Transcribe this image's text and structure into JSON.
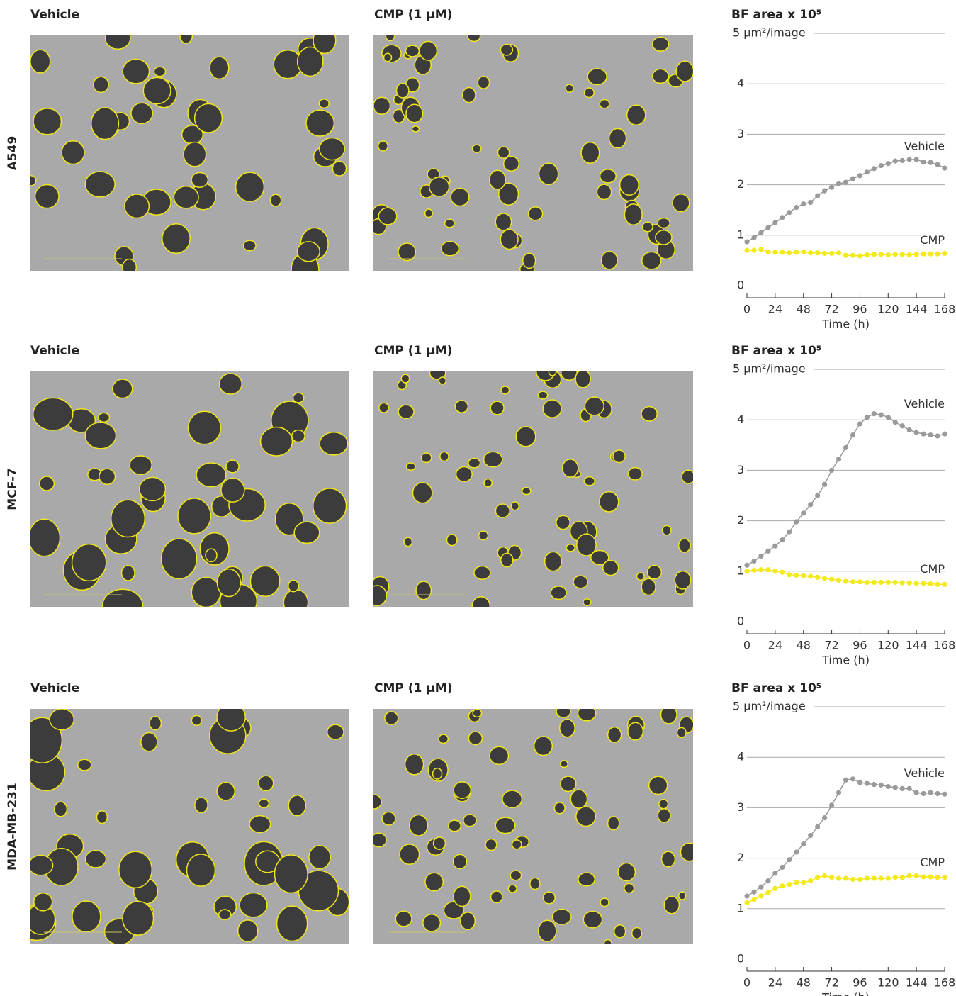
{
  "rows": [
    {
      "label": "A549",
      "image_titles": [
        "Vehicle",
        "CMP (1 μM)"
      ]
    },
    {
      "label": "MCF-7",
      "image_titles": [
        "Vehicle",
        "CMP (1 μM)"
      ]
    },
    {
      "label": "MDA-MB-231",
      "image_titles": [
        "Vehicle",
        "CMP (1 μM)"
      ]
    }
  ],
  "chart_data": [
    {
      "type": "line",
      "title": "BF area x 10⁵",
      "xlabel": "Time (h)",
      "x": [
        0,
        6,
        12,
        18,
        24,
        30,
        36,
        42,
        48,
        54,
        60,
        66,
        72,
        78,
        84,
        90,
        96,
        102,
        108,
        114,
        120,
        126,
        132,
        138,
        144,
        150,
        156,
        162,
        168
      ],
      "series": [
        {
          "name": "Vehicle",
          "color": "#9a9a9a",
          "values": [
            0.87,
            0.95,
            1.05,
            1.15,
            1.25,
            1.35,
            1.45,
            1.55,
            1.62,
            1.65,
            1.78,
            1.88,
            1.95,
            2.02,
            2.05,
            2.12,
            2.18,
            2.25,
            2.32,
            2.38,
            2.42,
            2.47,
            2.48,
            2.5,
            2.5,
            2.45,
            2.44,
            2.4,
            2.33
          ]
        },
        {
          "name": "CMP",
          "color": "#f2ea1c",
          "values": [
            0.7,
            0.7,
            0.72,
            0.67,
            0.66,
            0.66,
            0.65,
            0.66,
            0.67,
            0.65,
            0.65,
            0.64,
            0.64,
            0.65,
            0.6,
            0.6,
            0.59,
            0.61,
            0.62,
            0.62,
            0.61,
            0.62,
            0.62,
            0.61,
            0.62,
            0.63,
            0.63,
            0.63,
            0.64
          ]
        }
      ],
      "xlim": [
        0,
        168
      ],
      "xticks": [
        0,
        24,
        48,
        72,
        96,
        120,
        144,
        168
      ],
      "ylim": [
        0,
        5
      ],
      "yticks": [
        0,
        1,
        2,
        3,
        4,
        {
          "value": 5,
          "label": "5 μm²/image"
        }
      ],
      "grid": true
    },
    {
      "type": "line",
      "title": "BF area x 10⁵",
      "xlabel": "Time (h)",
      "x": [
        0,
        6,
        12,
        18,
        24,
        30,
        36,
        42,
        48,
        54,
        60,
        66,
        72,
        78,
        84,
        90,
        96,
        102,
        108,
        114,
        120,
        126,
        132,
        138,
        144,
        150,
        156,
        162,
        168
      ],
      "series": [
        {
          "name": "Vehicle",
          "color": "#9a9a9a",
          "values": [
            1.12,
            1.2,
            1.3,
            1.4,
            1.5,
            1.62,
            1.78,
            1.98,
            2.15,
            2.32,
            2.5,
            2.72,
            3.0,
            3.22,
            3.45,
            3.7,
            3.92,
            4.05,
            4.12,
            4.1,
            4.05,
            3.95,
            3.88,
            3.8,
            3.75,
            3.72,
            3.7,
            3.68,
            3.72
          ]
        },
        {
          "name": "CMP",
          "color": "#f2ea1c",
          "values": [
            1.0,
            1.02,
            1.03,
            1.03,
            1.0,
            0.98,
            0.93,
            0.92,
            0.91,
            0.9,
            0.88,
            0.86,
            0.84,
            0.82,
            0.8,
            0.79,
            0.79,
            0.78,
            0.78,
            0.78,
            0.78,
            0.78,
            0.77,
            0.77,
            0.76,
            0.76,
            0.75,
            0.74,
            0.74
          ]
        }
      ],
      "xlim": [
        0,
        168
      ],
      "xticks": [
        0,
        24,
        48,
        72,
        96,
        120,
        144,
        168
      ],
      "ylim": [
        0,
        5
      ],
      "yticks": [
        0,
        1,
        2,
        3,
        4,
        {
          "value": 5,
          "label": "5 μm²/image"
        }
      ],
      "grid": true
    },
    {
      "type": "line",
      "title": "BF area x 10⁵",
      "xlabel": "Time (h)",
      "x": [
        0,
        6,
        12,
        18,
        24,
        30,
        36,
        42,
        48,
        54,
        60,
        66,
        72,
        78,
        84,
        90,
        96,
        102,
        108,
        114,
        120,
        126,
        132,
        138,
        144,
        150,
        156,
        162,
        168
      ],
      "series": [
        {
          "name": "Vehicle",
          "color": "#9a9a9a",
          "values": [
            1.25,
            1.33,
            1.43,
            1.55,
            1.7,
            1.82,
            1.97,
            2.12,
            2.28,
            2.45,
            2.62,
            2.8,
            3.05,
            3.3,
            3.55,
            3.57,
            3.5,
            3.48,
            3.46,
            3.45,
            3.42,
            3.4,
            3.38,
            3.38,
            3.3,
            3.28,
            3.3,
            3.28,
            3.27
          ]
        },
        {
          "name": "CMP",
          "color": "#f2ea1c",
          "values": [
            1.12,
            1.18,
            1.25,
            1.32,
            1.4,
            1.45,
            1.48,
            1.52,
            1.52,
            1.55,
            1.62,
            1.65,
            1.62,
            1.6,
            1.6,
            1.58,
            1.58,
            1.6,
            1.6,
            1.6,
            1.6,
            1.62,
            1.62,
            1.65,
            1.65,
            1.63,
            1.63,
            1.62,
            1.62
          ]
        }
      ],
      "xlim": [
        0,
        168
      ],
      "xticks": [
        0,
        24,
        48,
        72,
        96,
        120,
        144,
        168
      ],
      "ylim": [
        0,
        5
      ],
      "yticks": [
        0,
        1,
        2,
        3,
        4,
        {
          "value": 5,
          "label": "5 μm²/image"
        }
      ],
      "grid": true
    }
  ]
}
